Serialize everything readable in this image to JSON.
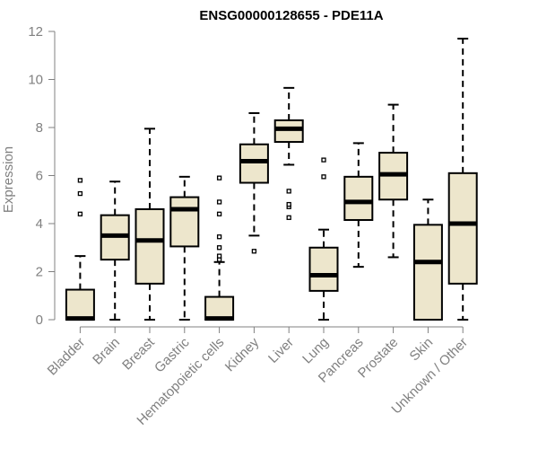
{
  "chart_data": {
    "type": "boxplot",
    "title": "ENSG00000128655 - PDE11A",
    "xlabel": "",
    "ylabel": "Expression",
    "ylim": [
      0,
      12
    ],
    "yticks": [
      0,
      2,
      4,
      6,
      8,
      10,
      12
    ],
    "box_fill": "#ede6cc",
    "categories": [
      "Bladder",
      "Brain",
      "Breast",
      "Gastric",
      "Hematopoietic cells",
      "Kidney",
      "Liver",
      "Lung",
      "Pancreas",
      "Prostate",
      "Skin",
      "Unknown / Other"
    ],
    "boxes": [
      {
        "category": "Bladder",
        "whisker_low": 0,
        "q1": 0,
        "median": 0.05,
        "q3": 1.25,
        "whisker_high": 2.65,
        "outliers": [
          4.4,
          5.25,
          5.8
        ]
      },
      {
        "category": "Brain",
        "whisker_low": 0,
        "q1": 2.5,
        "median": 3.5,
        "q3": 4.35,
        "whisker_high": 5.75,
        "outliers": []
      },
      {
        "category": "Breast",
        "whisker_low": 0,
        "q1": 1.5,
        "median": 3.3,
        "q3": 4.6,
        "whisker_high": 7.95,
        "outliers": []
      },
      {
        "category": "Gastric",
        "whisker_low": 0,
        "q1": 3.05,
        "median": 4.6,
        "q3": 5.1,
        "whisker_high": 5.95,
        "outliers": []
      },
      {
        "category": "Hematopoietic cells",
        "whisker_low": 0,
        "q1": 0,
        "median": 0.05,
        "q3": 0.95,
        "whisker_high": 2.4,
        "outliers": [
          2.5,
          2.65,
          3.0,
          3.45,
          4.4,
          4.9,
          5.9
        ]
      },
      {
        "category": "Kidney",
        "whisker_low": 3.5,
        "q1": 5.7,
        "median": 6.6,
        "q3": 7.3,
        "whisker_high": 8.6,
        "outliers": [
          2.85
        ]
      },
      {
        "category": "Liver",
        "whisker_low": 6.45,
        "q1": 7.4,
        "median": 7.95,
        "q3": 8.3,
        "whisker_high": 9.65,
        "outliers": [
          4.25,
          4.7,
          4.8,
          5.35
        ]
      },
      {
        "category": "Lung",
        "whisker_low": 0,
        "q1": 1.2,
        "median": 1.85,
        "q3": 3.0,
        "whisker_high": 3.75,
        "outliers": [
          5.95,
          6.65
        ]
      },
      {
        "category": "Pancreas",
        "whisker_low": 2.2,
        "q1": 4.15,
        "median": 4.9,
        "q3": 5.95,
        "whisker_high": 7.35,
        "outliers": []
      },
      {
        "category": "Prostate",
        "whisker_low": 2.6,
        "q1": 5.0,
        "median": 6.05,
        "q3": 6.95,
        "whisker_high": 8.95,
        "outliers": []
      },
      {
        "category": "Skin",
        "whisker_low": 0,
        "q1": 0,
        "median": 2.4,
        "q3": 3.95,
        "whisker_high": 5.0,
        "outliers": []
      },
      {
        "category": "Unknown / Other",
        "whisker_low": 0,
        "q1": 1.5,
        "median": 4.0,
        "q3": 6.1,
        "whisker_high": 11.7,
        "outliers": []
      }
    ]
  }
}
